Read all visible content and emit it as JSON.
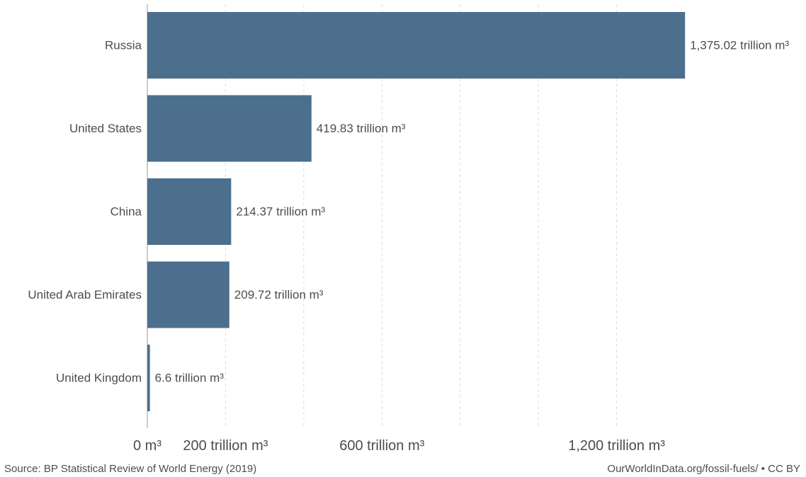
{
  "chart_data": {
    "type": "bar",
    "orientation": "horizontal",
    "categories": [
      "Russia",
      "United States",
      "China",
      "United Arab Emirates",
      "United Kingdom"
    ],
    "values": [
      1375.02,
      419.83,
      214.37,
      209.72,
      6.6
    ],
    "value_labels": [
      "1,375.02 trillion m³",
      "419.83 trillion m³",
      "214.37 trillion m³",
      "209.72 trillion m³",
      "6.6 trillion m³"
    ],
    "xlim": [
      0,
      1400
    ],
    "ticks": [
      0,
      200,
      600,
      1200
    ],
    "tick_labels": [
      "0 m³",
      "200 trillion m³",
      "600 trillion m³",
      "1,200 trillion m³"
    ],
    "gridlines": [
      0,
      200,
      400,
      600,
      800,
      1000,
      1200
    ],
    "grid": true,
    "bar_color": "#4c6f8d"
  },
  "footer": {
    "source": "Source: BP Statistical Review of World Energy (2019)",
    "credit": "OurWorldInData.org/fossil-fuels/ • CC BY"
  }
}
